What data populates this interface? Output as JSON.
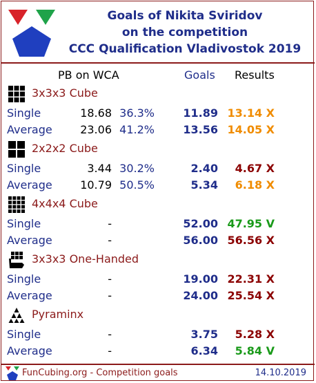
{
  "header": {
    "title_line1": "Goals of Nikita Sviridov",
    "title_line2": "on the competition",
    "title_line3": "CCC Qualification Vladivostok 2019"
  },
  "columns": {
    "pb": "PB on WCA",
    "goals": "Goals",
    "results": "Results"
  },
  "colors": {
    "miss_orange": "#f08c00",
    "miss_red": "#8b0000",
    "hit_green": "#1a9a1a",
    "label_blue": "#1f2d8a",
    "event_red": "#8b1a1a"
  },
  "events": [
    {
      "name": "3x3x3 Cube",
      "icon": "cube-3x3-icon",
      "rows": [
        {
          "label": "Single",
          "pb": "18.68",
          "pct": "36.3%",
          "goal": "11.89",
          "result": "13.14 X",
          "result_color": "#f08c00"
        },
        {
          "label": "Average",
          "pb": "23.06",
          "pct": "41.2%",
          "goal": "13.56",
          "result": "14.05 X",
          "result_color": "#f08c00"
        }
      ]
    },
    {
      "name": "2x2x2 Cube",
      "icon": "cube-2x2-icon",
      "rows": [
        {
          "label": "Single",
          "pb": "3.44",
          "pct": "30.2%",
          "goal": "2.40",
          "result": "4.67 X",
          "result_color": "#8b0000"
        },
        {
          "label": "Average",
          "pb": "10.79",
          "pct": "50.5%",
          "goal": "5.34",
          "result": "6.18 X",
          "result_color": "#f08c00"
        }
      ]
    },
    {
      "name": "4x4x4 Cube",
      "icon": "cube-4x4-icon",
      "rows": [
        {
          "label": "Single",
          "pb": "-",
          "pct": "",
          "goal": "52.00",
          "result": "47.95 V",
          "result_color": "#1a9a1a"
        },
        {
          "label": "Average",
          "pb": "-",
          "pct": "",
          "goal": "56.00",
          "result": "56.56 X",
          "result_color": "#8b0000"
        }
      ]
    },
    {
      "name": "3x3x3 One-Handed",
      "icon": "one-handed-icon",
      "rows": [
        {
          "label": "Single",
          "pb": "-",
          "pct": "",
          "goal": "19.00",
          "result": "22.31 X",
          "result_color": "#8b0000"
        },
        {
          "label": "Average",
          "pb": "-",
          "pct": "",
          "goal": "24.00",
          "result": "25.54 X",
          "result_color": "#8b0000"
        }
      ]
    },
    {
      "name": "Pyraminx",
      "icon": "pyraminx-icon",
      "rows": [
        {
          "label": "Single",
          "pb": "-",
          "pct": "",
          "goal": "3.75",
          "result": "5.28 X",
          "result_color": "#8b0000"
        },
        {
          "label": "Average",
          "pb": "-",
          "pct": "",
          "goal": "6.34",
          "result": "5.84 V",
          "result_color": "#1a9a1a"
        }
      ]
    }
  ],
  "footer": {
    "text": "FunCubing.org - Competition goals",
    "date": "14.10.2019"
  }
}
